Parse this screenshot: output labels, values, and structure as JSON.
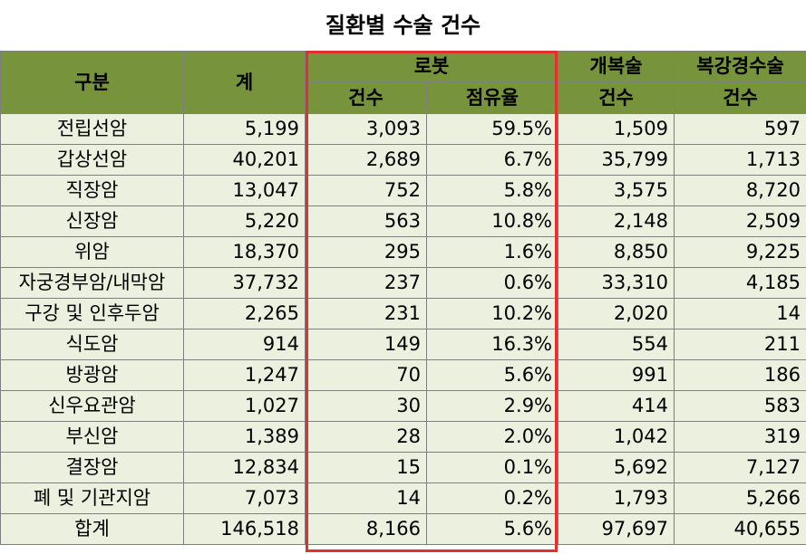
{
  "title": "질환별 수술 건수",
  "headers": {
    "category": "구분",
    "total": "계",
    "robot": "로봇",
    "robot_count": "건수",
    "robot_share": "점유율",
    "open": "개복술",
    "open_count": "건수",
    "lap": "복강경수술",
    "lap_count": "건수"
  },
  "rows": [
    {
      "name": "전립선암",
      "total": "5,199",
      "robot": "3,093",
      "share": "59.5%",
      "open": "1,509",
      "lap": "597"
    },
    {
      "name": "갑상선암",
      "total": "40,201",
      "robot": "2,689",
      "share": "6.7%",
      "open": "35,799",
      "lap": "1,713"
    },
    {
      "name": "직장암",
      "total": "13,047",
      "robot": "752",
      "share": "5.8%",
      "open": "3,575",
      "lap": "8,720"
    },
    {
      "name": "신장암",
      "total": "5,220",
      "robot": "563",
      "share": "10.8%",
      "open": "2,148",
      "lap": "2,509"
    },
    {
      "name": "위암",
      "total": "18,370",
      "robot": "295",
      "share": "1.6%",
      "open": "8,850",
      "lap": "9,225"
    },
    {
      "name": "자궁경부암/내막암",
      "total": "37,732",
      "robot": "237",
      "share": "0.6%",
      "open": "33,310",
      "lap": "4,185"
    },
    {
      "name": "구강 및 인후두암",
      "total": "2,265",
      "robot": "231",
      "share": "10.2%",
      "open": "2,020",
      "lap": "14"
    },
    {
      "name": "식도암",
      "total": "914",
      "robot": "149",
      "share": "16.3%",
      "open": "554",
      "lap": "211"
    },
    {
      "name": "방광암",
      "total": "1,247",
      "robot": "70",
      "share": "5.6%",
      "open": "991",
      "lap": "186"
    },
    {
      "name": "신우요관암",
      "total": "1,027",
      "robot": "30",
      "share": "2.9%",
      "open": "414",
      "lap": "583"
    },
    {
      "name": "부신암",
      "total": "1,389",
      "robot": "28",
      "share": "2.0%",
      "open": "1,042",
      "lap": "319"
    },
    {
      "name": "결장암",
      "total": "12,834",
      "robot": "15",
      "share": "0.1%",
      "open": "5,692",
      "lap": "7,127"
    },
    {
      "name": "폐 및 기관지암",
      "total": "7,073",
      "robot": "14",
      "share": "0.2%",
      "open": "1,793",
      "lap": "5,266"
    },
    {
      "name": "합계",
      "total": "146,518",
      "robot": "8,166",
      "share": "5.6%",
      "open": "97,697",
      "lap": "40,655"
    }
  ],
  "colors": {
    "header_bg": "#77933c",
    "cell_bg": "#ebf1de",
    "highlight_border": "#e03030"
  }
}
